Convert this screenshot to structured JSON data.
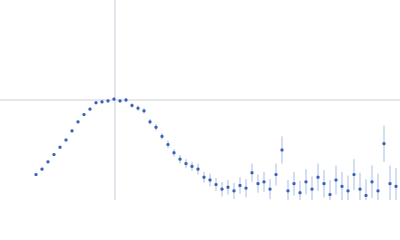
{
  "chart_data": {
    "type": "scatter",
    "x": [
      0.54,
      0.63,
      0.72,
      0.81,
      0.9,
      0.99,
      1.08,
      1.17,
      1.26,
      1.35,
      1.44,
      1.53,
      1.62,
      1.71,
      1.8,
      1.89,
      1.98,
      2.07,
      2.16,
      2.25,
      2.34,
      2.43,
      2.52,
      2.61,
      2.7,
      2.79,
      2.88,
      2.97,
      3.06,
      3.15,
      3.24,
      3.33,
      3.42,
      3.51,
      3.6,
      3.69,
      3.78,
      3.87,
      3.96,
      4.05,
      4.14,
      4.23,
      4.32,
      4.41,
      4.5,
      4.59,
      4.68,
      4.77,
      4.86,
      4.95,
      5.04,
      5.13,
      5.22,
      5.31,
      5.4,
      5.49,
      5.58,
      5.67,
      5.76,
      5.85,
      5.94
    ],
    "series": [
      {
        "color": "#3a62b8",
        "error_color": "#a9bde6",
        "values": [
          0.28,
          0.34,
          0.42,
          0.5,
          0.58,
          0.66,
          0.76,
          0.86,
          0.94,
          1.0,
          1.07,
          1.08,
          1.09,
          1.11,
          1.09,
          1.1,
          1.04,
          1.01,
          0.98,
          0.86,
          0.8,
          0.7,
          0.61,
          0.52,
          0.45,
          0.4,
          0.37,
          0.34,
          0.25,
          0.22,
          0.17,
          0.12,
          0.14,
          0.1,
          0.16,
          0.13,
          0.3,
          0.18,
          0.2,
          0.12,
          0.28,
          0.55,
          0.1,
          0.18,
          0.08,
          0.2,
          0.12,
          0.25,
          0.18,
          0.06,
          0.22,
          0.15,
          0.1,
          0.28,
          0.12,
          0.05,
          0.2,
          0.1,
          0.62,
          0.18,
          0.15
        ],
        "errors": [
          0.01,
          0.01,
          0.01,
          0.01,
          0.01,
          0.01,
          0.01,
          0.01,
          0.015,
          0.015,
          0.015,
          0.02,
          0.02,
          0.02,
          0.02,
          0.025,
          0.025,
          0.03,
          0.03,
          0.03,
          0.035,
          0.035,
          0.04,
          0.04,
          0.045,
          0.05,
          0.05,
          0.06,
          0.06,
          0.07,
          0.07,
          0.08,
          0.08,
          0.09,
          0.09,
          0.1,
          0.1,
          0.1,
          0.11,
          0.11,
          0.12,
          0.15,
          0.12,
          0.13,
          0.13,
          0.14,
          0.14,
          0.15,
          0.15,
          0.16,
          0.16,
          0.16,
          0.17,
          0.17,
          0.18,
          0.18,
          0.18,
          0.19,
          0.2,
          0.2,
          0.2
        ]
      }
    ],
    "xlim": [
      0,
      6
    ],
    "ylim": [
      0,
      2.2
    ],
    "reference_x": 1.725,
    "reference_y": 1.1,
    "reference_color": "#c8d0dc"
  }
}
